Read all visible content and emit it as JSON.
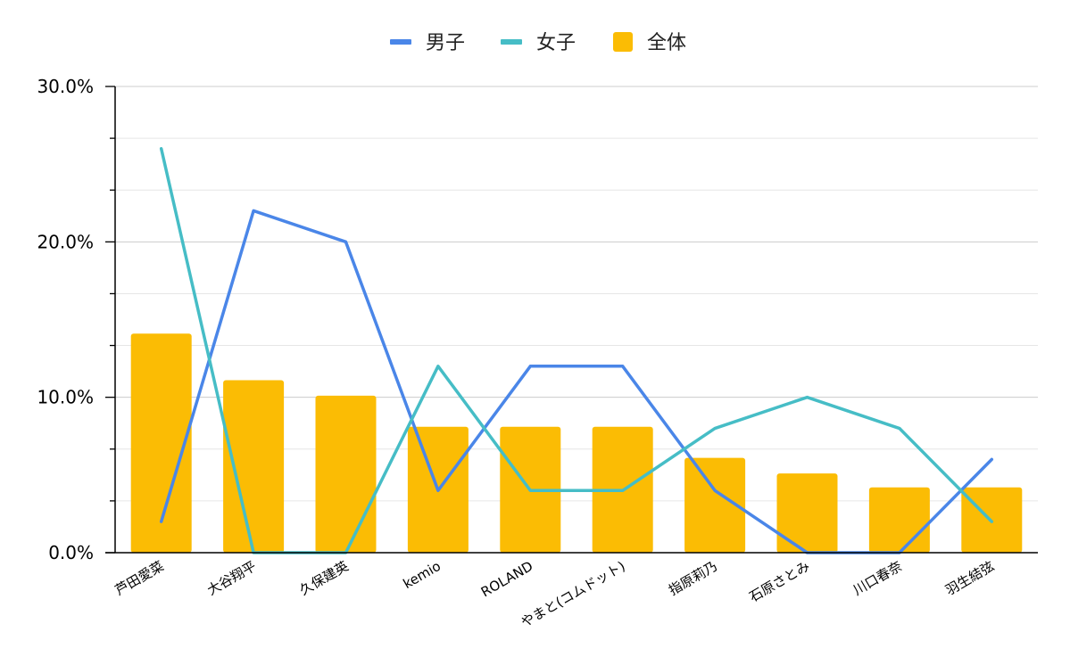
{
  "chart_data": {
    "type": "bar+line",
    "categories": [
      "芦田愛菜",
      "大谷翔平",
      "久保建英",
      "kemio",
      "ROLAND",
      "やまと(コムドット)",
      "指原莉乃",
      "石原さとみ",
      "川口春奈",
      "羽生結弦"
    ],
    "series": [
      {
        "name": "男子",
        "kind": "line",
        "color": "#4a86e8",
        "values": [
          2,
          22,
          20,
          4,
          12,
          12,
          4,
          0,
          0,
          6
        ]
      },
      {
        "name": "女子",
        "kind": "line",
        "color": "#46bdc6",
        "values": [
          26,
          0,
          0,
          12,
          4,
          4,
          8,
          10,
          8,
          2
        ]
      },
      {
        "name": "全体",
        "kind": "bar",
        "color": "#fbbc04",
        "values": [
          14.1,
          11.1,
          10.1,
          8.1,
          8.1,
          8.1,
          6.1,
          5.1,
          4.2,
          4.2
        ]
      }
    ],
    "yticks": [
      "0.0%",
      "10.0%",
      "20.0%",
      "30.0%"
    ],
    "ylim": [
      0,
      30
    ],
    "minor_gridlines": true,
    "legend_position": "top-center"
  }
}
